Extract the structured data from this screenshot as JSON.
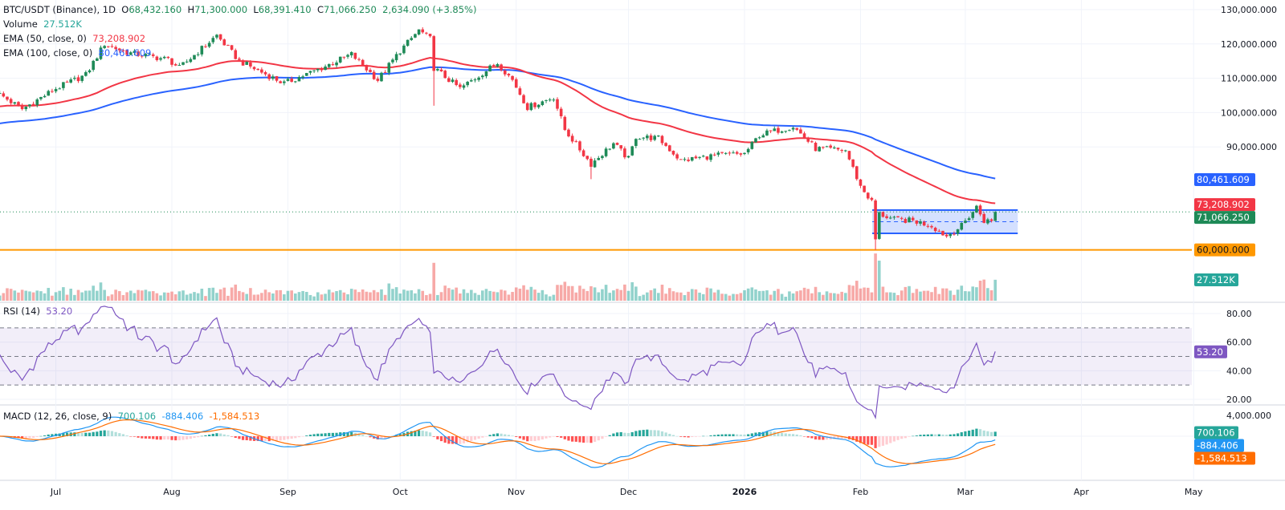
{
  "legend": {
    "symbol": "BTC/USDT (Binance), 1D",
    "o_label": "O",
    "o": "68,432.160",
    "h_label": "H",
    "h": "71,300.000",
    "l_label": "L",
    "l": "68,391.410",
    "c_label": "C",
    "c": "71,066.250",
    "change": "2,634.090 (+3.85%)",
    "volume_label": "Volume",
    "volume": "27.512K",
    "ema50_label": "EMA (50, close, 0)",
    "ema50": "73,208.902",
    "ema100_label": "EMA (100, close, 0)",
    "ema100": "80,461.609",
    "rsi_label": "RSI (14)",
    "rsi": "53.20",
    "macd_label": "MACD (12, 26, close, 9)",
    "macd_hist": "700.106",
    "macd_line": "-884.406",
    "macd_signal": "-1,584.513"
  },
  "chart_data": {
    "type": "candlestick",
    "interval": "1D",
    "last_candle": {
      "date": "2026-03-09",
      "o": 68432.16,
      "h": 71300.0,
      "l": 68391.41,
      "c": 71066.25,
      "volume_k": 27.512
    },
    "close_path": [
      [
        "2025-06-15",
        106000
      ],
      [
        "2025-06-22",
        101000
      ],
      [
        "2025-07-01",
        107000
      ],
      [
        "2025-07-09",
        111000
      ],
      [
        "2025-07-14",
        120000
      ],
      [
        "2025-07-20",
        117500
      ],
      [
        "2025-07-31",
        115500
      ],
      [
        "2025-08-03",
        113000
      ],
      [
        "2025-08-13",
        122500
      ],
      [
        "2025-08-19",
        115000
      ],
      [
        "2025-08-31",
        108500
      ],
      [
        "2025-09-10",
        113000
      ],
      [
        "2025-09-18",
        117000
      ],
      [
        "2025-09-25",
        109500
      ],
      [
        "2025-10-01",
        118000
      ],
      [
        "2025-10-06",
        124000
      ],
      [
        "2025-10-09",
        121500
      ],
      [
        "2025-10-10",
        113000
      ],
      [
        "2025-10-17",
        107000
      ],
      [
        "2025-10-27",
        114500
      ],
      [
        "2025-10-31",
        109500
      ],
      [
        "2025-11-04",
        101500
      ],
      [
        "2025-11-11",
        104500
      ],
      [
        "2025-11-14",
        95000
      ],
      [
        "2025-11-21",
        85000
      ],
      [
        "2025-11-27",
        91000
      ],
      [
        "2025-12-01",
        86500
      ],
      [
        "2025-12-03",
        93000
      ],
      [
        "2025-12-09",
        92500
      ],
      [
        "2025-12-15",
        86000
      ],
      [
        "2025-12-24",
        87500
      ],
      [
        "2026-01-01",
        88000
      ],
      [
        "2026-01-05",
        93500
      ],
      [
        "2026-01-14",
        96000
      ],
      [
        "2026-01-20",
        89500
      ],
      [
        "2026-01-28",
        89000
      ],
      [
        "2026-02-01",
        78500
      ],
      [
        "2026-02-04",
        74000
      ],
      [
        "2026-02-05",
        63000
      ],
      [
        "2026-02-06",
        70500
      ],
      [
        "2026-02-10",
        68800
      ],
      [
        "2026-02-15",
        68500
      ],
      [
        "2026-02-20",
        67000
      ],
      [
        "2026-02-24",
        64000
      ],
      [
        "2026-02-28",
        67000
      ],
      [
        "2026-03-04",
        72500
      ],
      [
        "2026-03-06",
        68500
      ],
      [
        "2026-03-08",
        68432.16
      ]
    ],
    "notable_lows": [
      {
        "date": "2025-10-10",
        "low": 102000
      },
      {
        "date": "2025-11-21",
        "low": 80600
      },
      {
        "date": "2026-02-05",
        "low": 60000
      }
    ],
    "price_axis": {
      "range": [
        55000,
        131000
      ],
      "ticks": [
        {
          "value": 130000,
          "label": "130,000.000"
        },
        {
          "value": 120000,
          "label": "120,000.000"
        },
        {
          "value": 110000,
          "label": "110,000.000"
        },
        {
          "value": 100000,
          "label": "100,000.000"
        },
        {
          "value": 90000,
          "label": "90,000.000"
        }
      ]
    },
    "price_badges": [
      {
        "value": 80461.609,
        "label": "80,461.609",
        "color": "#2962ff"
      },
      {
        "value": 73208.902,
        "label": "73,208.902",
        "color": "#f23645"
      },
      {
        "value": 71066.25,
        "label": "71,066.250",
        "color": "#1e8a57"
      },
      {
        "value": 60000,
        "label": "60,000.000",
        "color": "#ff9800",
        "text_color": "#131722"
      }
    ],
    "volume_badge": {
      "label": "27.512K",
      "color": "#26a69a"
    },
    "horizontal_line": {
      "value": 60000,
      "color": "#ff9800"
    },
    "range_box": {
      "from": "2026-02-05",
      "to": "2026-03-09",
      "top": 71600,
      "bottom": 64800,
      "color": "#2962ff"
    },
    "time_axis": [
      {
        "date": "2025-07-01",
        "label": "Jul"
      },
      {
        "date": "2025-08-01",
        "label": "Aug"
      },
      {
        "date": "2025-09-01",
        "label": "Sep"
      },
      {
        "date": "2025-10-01",
        "label": "Oct"
      },
      {
        "date": "2025-11-01",
        "label": "Nov"
      },
      {
        "date": "2025-12-01",
        "label": "Dec"
      },
      {
        "date": "2026-01-01",
        "label": "2026",
        "bold": true
      },
      {
        "date": "2026-02-01",
        "label": "Feb"
      },
      {
        "date": "2026-03-01",
        "label": "Mar"
      },
      {
        "date": "2026-04-01",
        "label": "Apr"
      },
      {
        "date": "2026-05-01",
        "label": "May"
      }
    ],
    "rsi_axis": {
      "ticks": [
        {
          "value": 80,
          "label": "80.00"
        },
        {
          "value": 60,
          "label": "60.00"
        },
        {
          "value": 40,
          "label": "40.00"
        },
        {
          "value": 20,
          "label": "20.00"
        }
      ],
      "bands": [
        70,
        50,
        30
      ],
      "badge": {
        "label": "53.20",
        "color": "#7e57c2"
      }
    },
    "macd_axis": {
      "ticks": [
        {
          "value": 4000,
          "label": "4,000.000"
        }
      ],
      "badges": [
        {
          "value": 700.106,
          "label": "700.106",
          "color": "#26a69a"
        },
        {
          "value": -884.406,
          "label": "-884.406",
          "color": "#2196f3"
        },
        {
          "value": -1584.513,
          "label": "-1,584.513",
          "color": "#ff6d00"
        }
      ]
    },
    "colors": {
      "up": "#1e8a57",
      "down": "#f23645",
      "ema50": "#f23645",
      "ema100": "#2962ff",
      "rsi": "#7e57c2",
      "macd": "#2196f3",
      "signal": "#ff6d00"
    }
  }
}
